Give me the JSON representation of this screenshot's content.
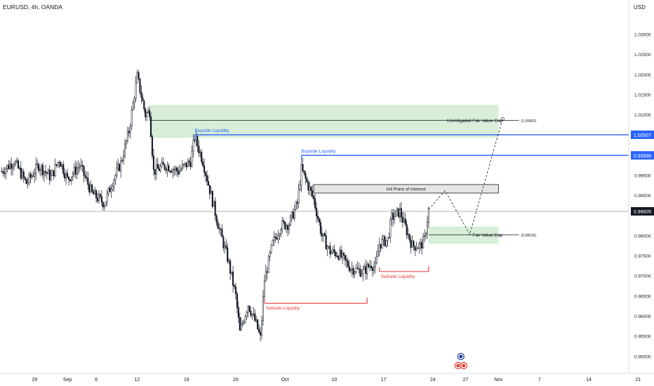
{
  "header": {
    "symbol": "EURUSD, 4h, OANDA",
    "currency": "USD"
  },
  "chart_data": {
    "type": "candlestick",
    "ylim": [
      0.9465,
      1.0368
    ],
    "y_ticks": [
      "1.03000",
      "1.02500",
      "1.02000",
      "1.01500",
      "1.01000",
      "1.00500",
      "1.00000",
      "0.99500",
      "0.99000",
      "0.98500",
      "0.98000",
      "0.97500",
      "0.97000",
      "0.96500",
      "0.96000",
      "0.95500",
      "0.95000"
    ],
    "x_ticks": [
      {
        "label": "29",
        "bar": 8
      },
      {
        "label": "Sep",
        "bar": 16
      },
      {
        "label": "6",
        "bar": 23
      },
      {
        "label": "12",
        "bar": 33
      },
      {
        "label": "19",
        "bar": 45
      },
      {
        "label": "26",
        "bar": 57
      },
      {
        "label": "Oct",
        "bar": 69
      },
      {
        "label": "10",
        "bar": 81
      },
      {
        "label": "17",
        "bar": 93
      },
      {
        "label": "24",
        "bar": 105
      },
      {
        "label": "27",
        "bar": 113
      },
      {
        "label": "Nov",
        "bar": 121
      },
      {
        "label": "7",
        "bar": 131
      },
      {
        "label": "14",
        "bar": 143
      },
      {
        "label": "21",
        "bar": 155
      }
    ],
    "price_path": [
      [
        0,
        0.996
      ],
      [
        3,
        0.9985
      ],
      [
        6,
        0.993
      ],
      [
        9,
        0.9975
      ],
      [
        12,
        0.9945
      ],
      [
        14,
        0.999
      ],
      [
        16,
        0.994
      ],
      [
        19,
        0.9975
      ],
      [
        22,
        0.9905
      ],
      [
        25,
        0.988
      ],
      [
        27,
        0.9935
      ],
      [
        29,
        0.998
      ],
      [
        31,
        1.006
      ],
      [
        33,
        1.0195
      ],
      [
        35,
        1.01
      ],
      [
        36,
        1.011
      ],
      [
        37,
        0.996
      ],
      [
        40,
        0.9975
      ],
      [
        43,
        0.996
      ],
      [
        46,
        0.9985
      ],
      [
        47,
        1.0045
      ],
      [
        49,
        0.9985
      ],
      [
        51,
        0.99
      ],
      [
        53,
        0.9815
      ],
      [
        55,
        0.9745
      ],
      [
        57,
        0.965
      ],
      [
        58,
        0.956
      ],
      [
        60,
        0.963
      ],
      [
        62,
        0.958
      ],
      [
        63,
        0.9545
      ],
      [
        64,
        0.969
      ],
      [
        66,
        0.978
      ],
      [
        68,
        0.9825
      ],
      [
        70,
        0.983
      ],
      [
        72,
        0.988
      ],
      [
        73,
        0.9965
      ],
      [
        74,
        0.994
      ],
      [
        76,
        0.989
      ],
      [
        78,
        0.98
      ],
      [
        80,
        0.976
      ],
      [
        82,
        0.9755
      ],
      [
        85,
        0.972
      ],
      [
        88,
        0.971
      ],
      [
        90,
        0.973
      ],
      [
        91,
        0.972
      ],
      [
        92,
        0.978
      ],
      [
        94,
        0.979
      ],
      [
        95,
        0.9845
      ],
      [
        97,
        0.986
      ],
      [
        98,
        0.983
      ],
      [
        100,
        0.9775
      ],
      [
        102,
        0.9775
      ],
      [
        103,
        0.979
      ],
      [
        104,
        0.9865
      ]
    ],
    "zones": [
      {
        "name": "Unmitigated Fair Value Gap",
        "from_bar": 36,
        "to_bar": 121,
        "top": 1.0125,
        "bottom": 1.0043,
        "color": "#d8eed8"
      },
      {
        "name": "H4 Point of Interest",
        "from_bar": 76,
        "to_bar": 121,
        "top": 0.9927,
        "bottom": 0.9906,
        "color": "#e6e6e6"
      },
      {
        "name": "Fair Value Gap",
        "from_bar": 104,
        "to_bar": 121,
        "top": 0.9823,
        "bottom": 0.978,
        "color": "#d8eed8"
      }
    ],
    "levels": [
      {
        "label": "Unmitigated Fair Value Gap",
        "price": 1.00863,
        "value_label": "(1.00863)",
        "from_bar": 36,
        "to_bar": 126
      },
      {
        "label": "Buyside Liquidity",
        "price": 1.00507,
        "value_label": "1.00507",
        "color": "#2962ff",
        "from_bar": 47,
        "to_bar": 153
      },
      {
        "label": "Buyside Liquidity",
        "price": 0.99996,
        "value_label": "0.99996",
        "color": "#2962ff",
        "from_bar": 73,
        "to_bar": 153
      },
      {
        "label": "Fair Value Gap",
        "price": 0.98019,
        "value_label": "(0.98019)",
        "from_bar": 104,
        "to_bar": 126
      },
      {
        "label": "Sellside Liquidity",
        "price": 0.9632,
        "color": "#e53935",
        "from_bar": 64,
        "to_bar": 89
      },
      {
        "label": "Sellside Liquidity",
        "price": 0.9711,
        "color": "#e53935",
        "from_bar": 92,
        "to_bar": 104
      }
    ],
    "current_price": {
      "label": "0.98605",
      "value": 0.98605
    },
    "projection": [
      [
        104,
        0.9865
      ],
      [
        108,
        0.9912
      ],
      [
        114,
        0.9803
      ],
      [
        122,
        1.009
      ]
    ],
    "events": [
      "event-flag",
      "event-flag",
      "event-flag"
    ]
  }
}
